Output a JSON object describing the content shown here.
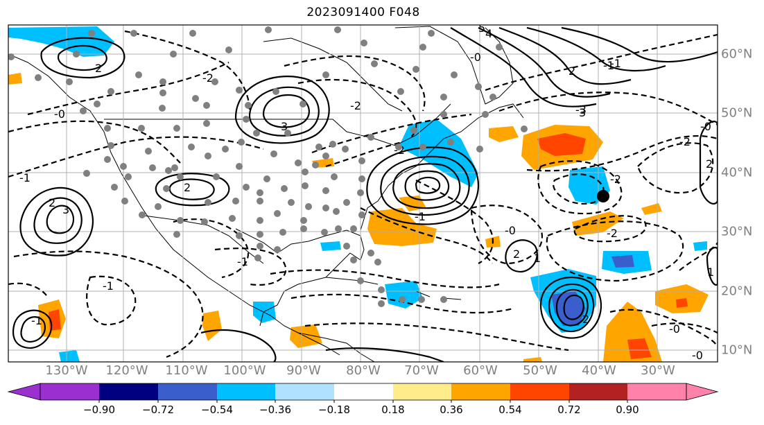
{
  "title": "2023091400 F048",
  "longitude_labels": [
    "130°W",
    "120°W",
    "110°W",
    "100°W",
    "90°W",
    "80°W",
    "70°W",
    "60°W",
    "50°W",
    "40°W",
    "30°W"
  ],
  "latitude_labels": [
    "60°N",
    "50°N",
    "40°N",
    "30°N",
    "20°N",
    "10°N"
  ],
  "colorbar": {
    "tick_labels": [
      "−0.90",
      "−0.72",
      "−0.54",
      "−0.36",
      "−0.18",
      "0.18",
      "0.36",
      "0.54",
      "0.72",
      "0.90"
    ],
    "colors": [
      "#9b30d0",
      "#000080",
      "#3a5fcd",
      "#00bfff",
      "#b0e2ff",
      "#ffffff",
      "#ffec8b",
      "#ffa500",
      "#ff4500",
      "#b22222",
      "#ff82ab"
    ]
  },
  "contour_labels": {
    "solid": [
      "2",
      "3",
      "2",
      "3",
      "2",
      "2",
      "3",
      "4",
      "5",
      "2",
      "2",
      "1",
      "2",
      "1"
    ],
    "dashed": [
      "-0",
      "-1",
      "-2",
      "-0",
      "-1",
      "-2",
      "-1",
      "-2",
      "-0",
      "-2",
      "-1",
      "-0",
      "-2",
      "-3",
      "-2",
      "-1",
      "-0",
      "-1",
      "-0",
      "-1"
    ]
  },
  "marker": {
    "label": "storm-center",
    "lon": "39.5°W",
    "lat": "35.5°N"
  }
}
